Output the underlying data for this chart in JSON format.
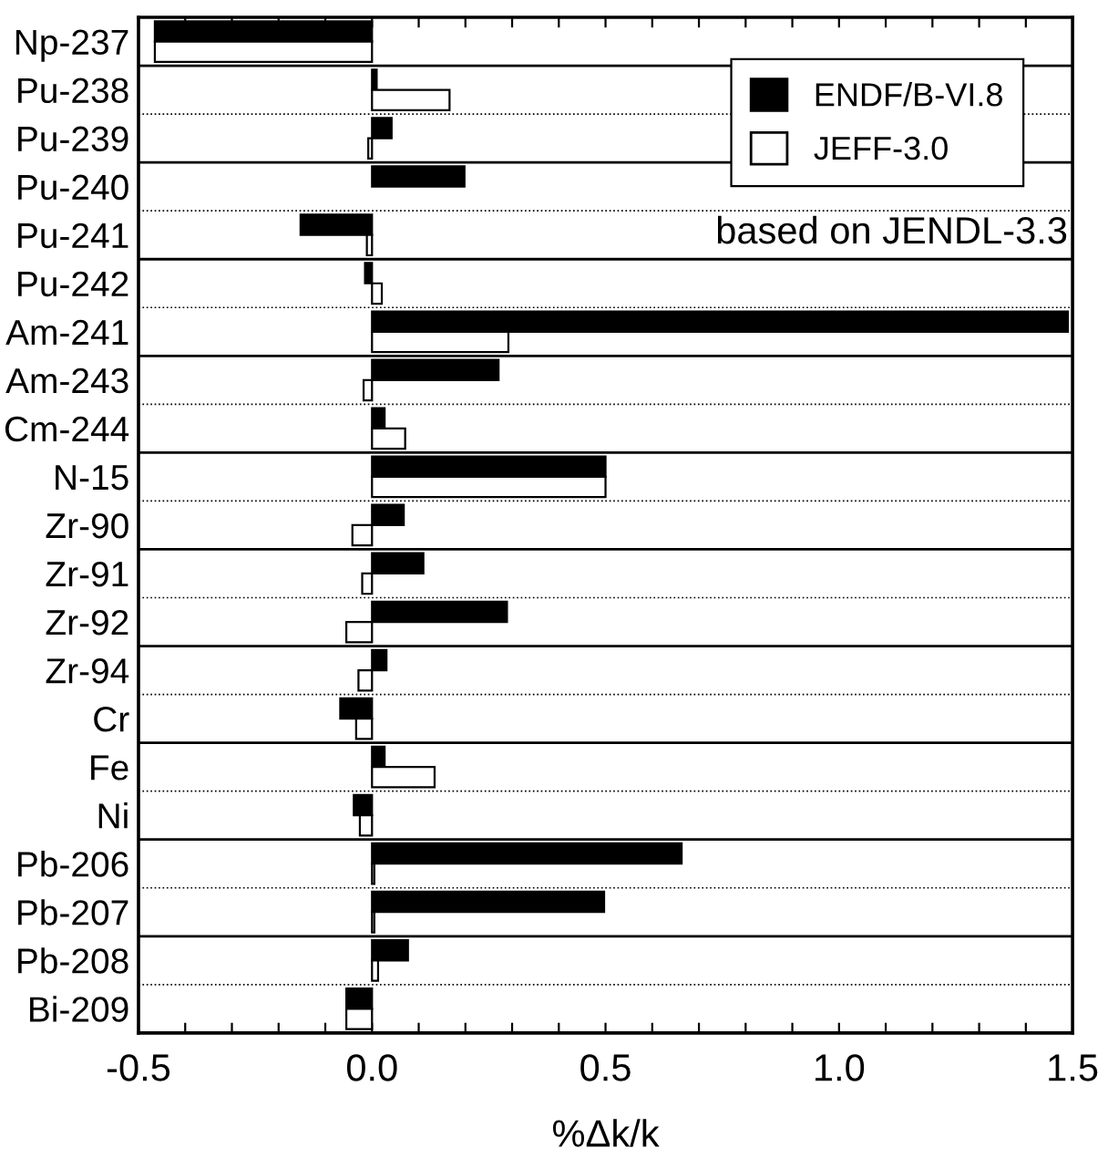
{
  "chart_data": {
    "type": "bar",
    "orientation": "horizontal",
    "xlabel": "%Δk/k",
    "categories": [
      "Np-237",
      "Pu-238",
      "Pu-239",
      "Pu-240",
      "Pu-241",
      "Pu-242",
      "Am-241",
      "Am-243",
      "Cm-244",
      "N-15",
      "Zr-90",
      "Zr-91",
      "Zr-92",
      "Zr-94",
      "Cr",
      "Fe",
      "Ni",
      "Pb-206",
      "Pb-207",
      "Pb-208",
      "Bi-209"
    ],
    "series": [
      {
        "name": "ENDF/B-VI.8",
        "color": "#000000",
        "values": [
          -0.465,
          0.01,
          0.042,
          0.198,
          -0.153,
          -0.015,
          1.49,
          0.271,
          0.027,
          0.5,
          0.068,
          0.11,
          0.289,
          0.031,
          -0.068,
          0.027,
          -0.039,
          0.663,
          0.497,
          0.077,
          -0.055
        ]
      },
      {
        "name": "JEFF-3.0",
        "color": "#ffffff",
        "values": [
          -0.465,
          0.166,
          -0.008,
          null,
          -0.011,
          0.021,
          0.292,
          -0.018,
          0.071,
          0.5,
          -0.042,
          -0.021,
          -0.055,
          -0.029,
          -0.034,
          0.134,
          -0.026,
          0.005,
          0.005,
          0.013,
          -0.055
        ]
      }
    ],
    "xlim": [
      -0.5,
      1.5
    ],
    "xticks": [
      {
        "value": -0.5,
        "label": "-0.5"
      },
      {
        "value": -0.4,
        "label": null
      },
      {
        "value": -0.3,
        "label": null
      },
      {
        "value": -0.2,
        "label": null
      },
      {
        "value": -0.1,
        "label": null
      },
      {
        "value": 0.0,
        "label": "0.0"
      },
      {
        "value": 0.1,
        "label": null
      },
      {
        "value": 0.2,
        "label": null
      },
      {
        "value": 0.3,
        "label": null
      },
      {
        "value": 0.4,
        "label": null
      },
      {
        "value": 0.5,
        "label": "0.5"
      },
      {
        "value": 0.6,
        "label": null
      },
      {
        "value": 0.7,
        "label": null
      },
      {
        "value": 0.8,
        "label": null
      },
      {
        "value": 0.9,
        "label": null
      },
      {
        "value": 1.0,
        "label": "1.0"
      },
      {
        "value": 1.1,
        "label": null
      },
      {
        "value": 1.2,
        "label": null
      },
      {
        "value": 1.3,
        "label": null
      },
      {
        "value": 1.4,
        "label": null
      },
      {
        "value": 1.5,
        "label": "1.5"
      }
    ],
    "annotations": [
      "based on JENDL-3.3"
    ],
    "grid": "y",
    "legend": "top right"
  }
}
